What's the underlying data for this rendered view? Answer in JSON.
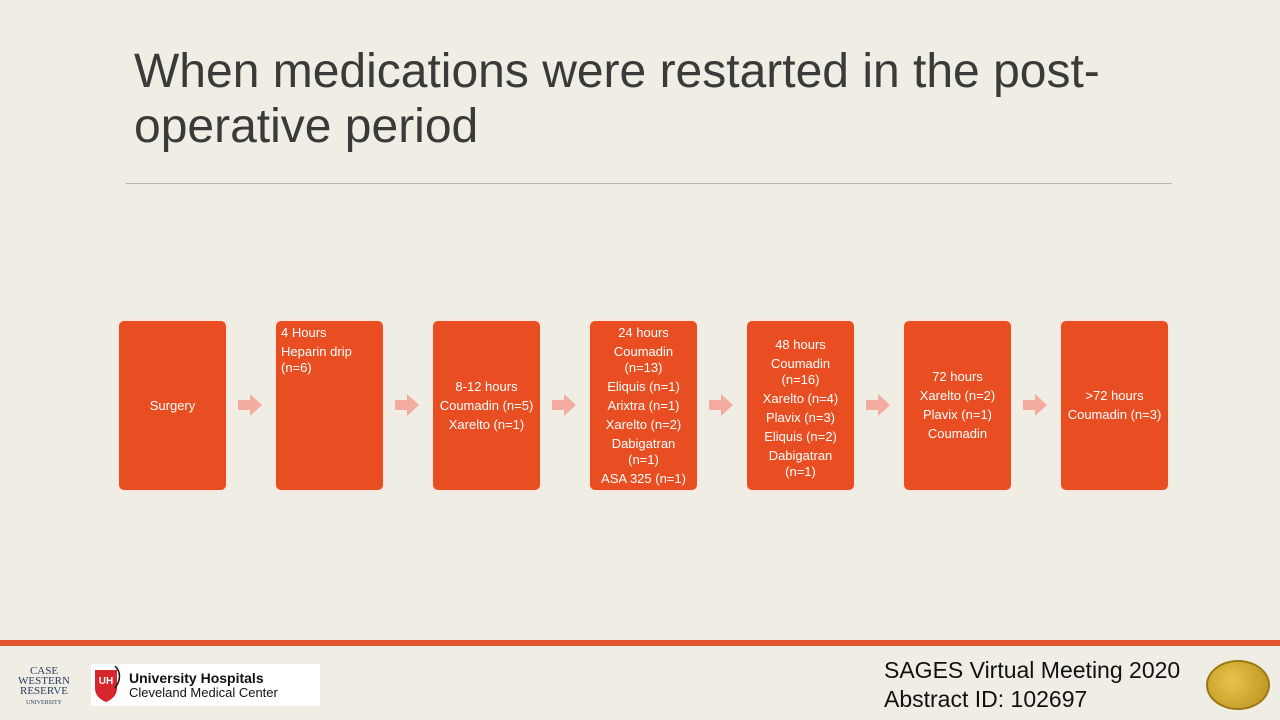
{
  "slide": {
    "title": "When medications were restarted in the post-operative period"
  },
  "flow": {
    "accent_color": "#e84e22",
    "arrow_color": "#f4aba0",
    "steps": [
      {
        "lines": [
          "Surgery"
        ]
      },
      {
        "lines": [
          "4 Hours",
          "Heparin drip (n=6)"
        ]
      },
      {
        "lines": [
          "8-12 hours",
          "Coumadin (n=5)",
          "Xarelto (n=1)"
        ]
      },
      {
        "lines": [
          "24 hours",
          "Coumadin (n=13)",
          "Eliquis (n=1)",
          "Arixtra (n=1)",
          "Xarelto (n=2)",
          "Dabigatran (n=1)",
          "ASA 325 (n=1)"
        ]
      },
      {
        "lines": [
          "48 hours",
          "Coumadin (n=16)",
          "Xarelto (n=4)",
          "Plavix (n=3)",
          "Eliquis (n=2)",
          "Dabigatran (n=1)"
        ]
      },
      {
        "lines": [
          "72 hours",
          "Xarelto (n=2)",
          "Plavix (n=1)",
          "Coumadin"
        ]
      },
      {
        "lines": [
          ">72 hours",
          "Coumadin (n=3)"
        ]
      }
    ]
  },
  "footer": {
    "cwru_logo": "CASE WESTERN RESERVE UNIVERSITY",
    "uh_logo": {
      "mark": "UH",
      "name": "University Hospitals",
      "sub": "Cleveland Medical Center"
    },
    "meeting": "SAGES Virtual Meeting 2020",
    "abstract": "Abstract ID: 102697",
    "seal_icon": "sages-seal"
  }
}
